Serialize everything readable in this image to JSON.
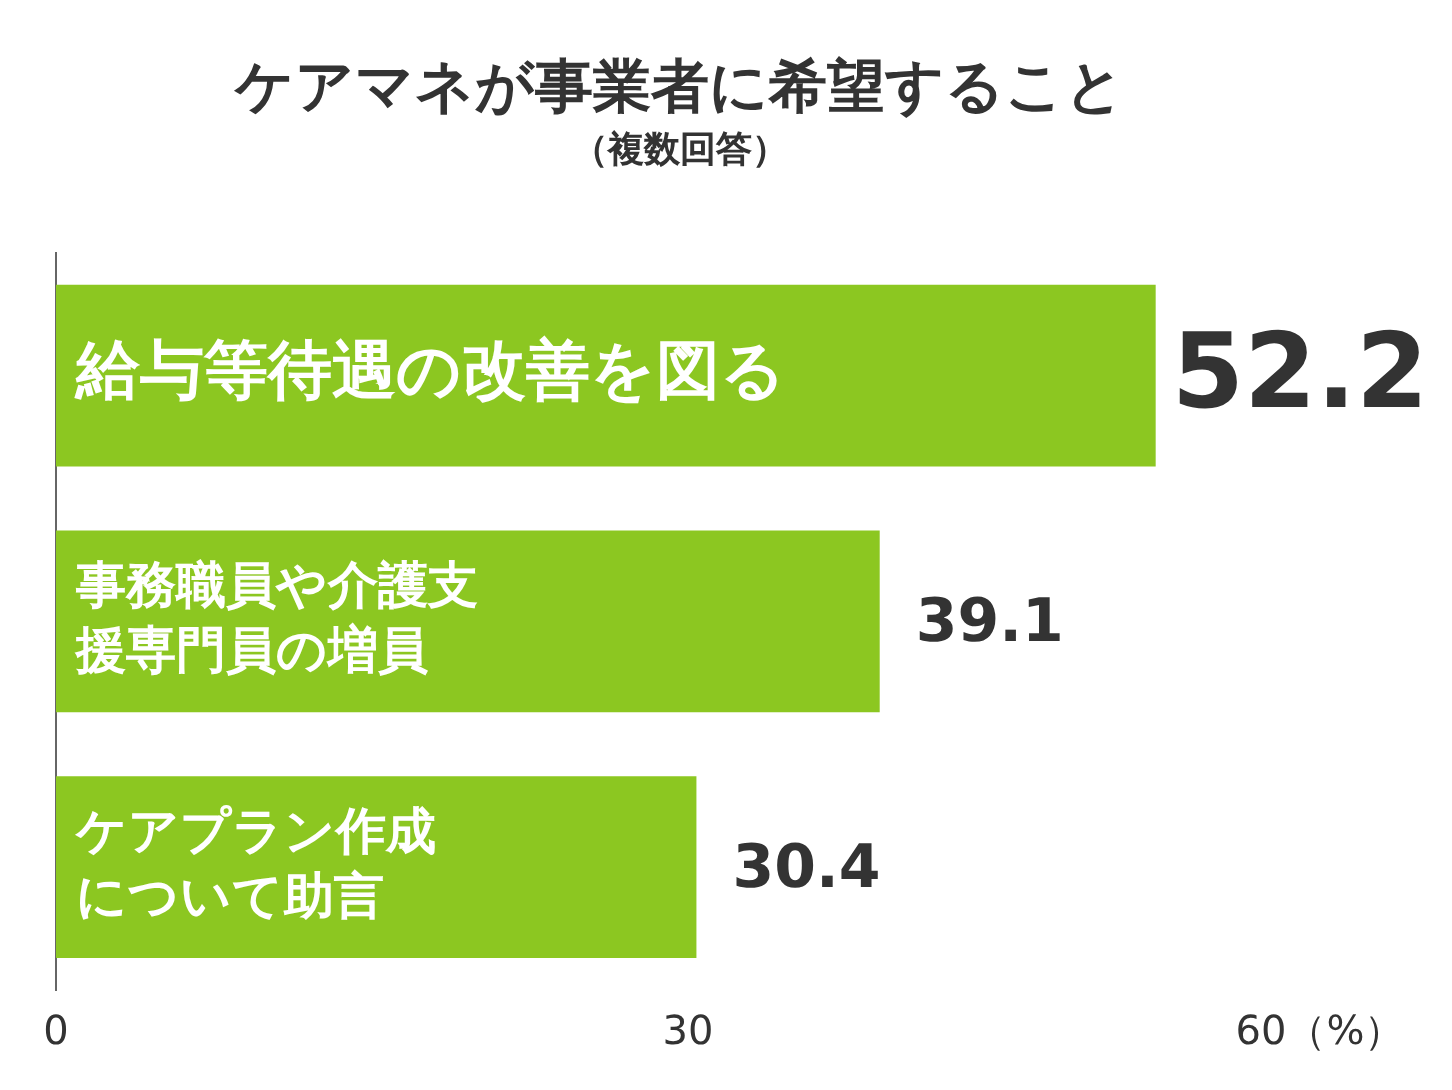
{
  "chart_data": {
    "type": "bar",
    "orientation": "horizontal",
    "title": "ケアマネが事業者に希望すること",
    "subtitle": "（複数回答）",
    "categories": [
      "給与等待遇の改善を図る",
      "事務職員や介護支援専門員の増員",
      "ケアプラン作成について助言"
    ],
    "values": [
      52.2,
      39.1,
      30.4
    ],
    "color": "#8cc721",
    "xlim": [
      0,
      60
    ],
    "xticks": [
      0,
      30,
      {
        "value": 60,
        "label": "60（%）"
      }
    ],
    "data_labels": true,
    "grid": false,
    "legend": false,
    "tick_labels": "x"
  }
}
